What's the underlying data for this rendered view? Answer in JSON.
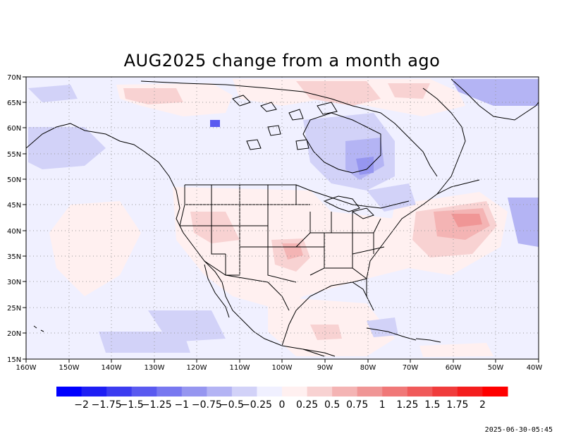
{
  "title": "AUG2025 change from a month ago",
  "timestamp": "2025-06-30-05:45",
  "lat_labels": [
    "70N",
    "65N",
    "60N",
    "55N",
    "50N",
    "45N",
    "40N",
    "35N",
    "30N",
    "25N",
    "20N",
    "15N"
  ],
  "lon_labels": [
    "160W",
    "150W",
    "140W",
    "130W",
    "120W",
    "110W",
    "100W",
    "90W",
    "80W",
    "70W",
    "60W",
    "50W",
    "40W"
  ],
  "colorbar": {
    "colors": [
      "#0000ff",
      "#1e1ef4",
      "#3c3cf0",
      "#5a5af0",
      "#7878f0",
      "#9696f0",
      "#b4b4f4",
      "#d2d2f8",
      "#f0f0ff",
      "#fff0f0",
      "#f8d2d2",
      "#f4b4b4",
      "#f09696",
      "#f07878",
      "#f05a5a",
      "#f03c3c",
      "#f41e1e",
      "#ff0000"
    ],
    "labels": [
      "−2",
      "−1.75",
      "−1.5",
      "−1.25",
      "−1",
      "−0.75",
      "−0.5",
      "−0.25",
      "0",
      "0.25",
      "0.5",
      "0.75",
      "1",
      "1.25",
      "1.5",
      "1.75",
      "2"
    ]
  },
  "colors": {
    "background_field": "#f0f0ff",
    "coast": "#000000",
    "grid": "#999999"
  }
}
